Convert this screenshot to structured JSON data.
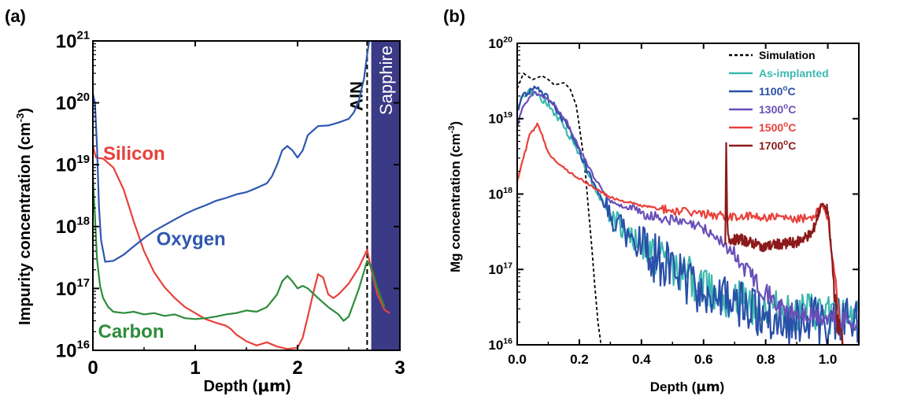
{
  "chart_data": [
    {
      "panel_label": "(a)",
      "type": "line",
      "xlabel": "Depth (μm)",
      "xlabel_prefix": "Depth (",
      "xlabel_unit": "μm",
      "xlabel_suffix": ")",
      "ylabel_prefix": "Impurity concentration (cm",
      "ylabel_exp": "-3",
      "ylabel_suffix": ")",
      "xlim": [
        0,
        3
      ],
      "ylim": [
        1e+16,
        1e+21
      ],
      "yscale": "log",
      "x_ticks": [
        "0",
        "1",
        "2",
        "3"
      ],
      "y_ticks": [
        {
          "base": "10",
          "exp": "16"
        },
        {
          "base": "10",
          "exp": "17"
        },
        {
          "base": "10",
          "exp": "18"
        },
        {
          "base": "10",
          "exp": "19"
        },
        {
          "base": "10",
          "exp": "20"
        },
        {
          "base": "10",
          "exp": "21"
        }
      ],
      "regions": [
        {
          "label": "AlN",
          "x_start": 2.68,
          "boundary": "dashed",
          "color": "#000000"
        },
        {
          "label": "Sapphire",
          "x_start": 2.72,
          "x_end": 3.0,
          "color": "#3b3a86",
          "text_color": "#ffffff"
        }
      ],
      "series": [
        {
          "name": "Silicon",
          "color": "#e8413a",
          "label_pos": [
            0.1,
            1.2e+19
          ],
          "points": [
            [
              0.0,
              2e+19
            ],
            [
              0.03,
              1.3e+19
            ],
            [
              0.1,
              1.25e+19
            ],
            [
              0.2,
              9e+18
            ],
            [
              0.3,
              4e+18
            ],
            [
              0.4,
              1.2e+18
            ],
            [
              0.5,
              4e+17
            ],
            [
              0.6,
              1.8e+17
            ],
            [
              0.7,
              1.05e+17
            ],
            [
              0.8,
              7e+16
            ],
            [
              0.9,
              5e+16
            ],
            [
              1.0,
              4e+16
            ],
            [
              1.1,
              3.2e+16
            ],
            [
              1.2,
              2.8e+16
            ],
            [
              1.3,
              2.5e+16
            ],
            [
              1.35,
              2.2e+16
            ],
            [
              1.4,
              1.8e+16
            ],
            [
              1.5,
              1.4e+16
            ],
            [
              1.6,
              1.2e+16
            ],
            [
              1.7,
              1.35e+16
            ],
            [
              1.8,
              1.15e+16
            ],
            [
              1.9,
              1.05e+16
            ],
            [
              2.0,
              1.1e+16
            ],
            [
              2.05,
              1.6e+16
            ],
            [
              2.1,
              3.5e+16
            ],
            [
              2.15,
              8e+16
            ],
            [
              2.2,
              1.7e+17
            ],
            [
              2.25,
              1.5e+17
            ],
            [
              2.3,
              8e+16
            ],
            [
              2.35,
              7e+16
            ],
            [
              2.4,
              8e+16
            ],
            [
              2.5,
              1.2e+17
            ],
            [
              2.6,
              2.2e+17
            ],
            [
              2.68,
              4.2e+17
            ],
            [
              2.72,
              2e+17
            ],
            [
              2.78,
              8e+16
            ],
            [
              2.85,
              4.5e+16
            ],
            [
              2.9,
              4e+16
            ]
          ]
        },
        {
          "name": "Oxygen",
          "color": "#2e57b0",
          "label_pos": [
            0.62,
            5e+17
          ],
          "points": [
            [
              0.0,
              1.4e+20
            ],
            [
              0.02,
              1e+20
            ],
            [
              0.04,
              2e+19
            ],
            [
              0.06,
              2e+18
            ],
            [
              0.08,
              6e+17
            ],
            [
              0.12,
              2.7e+17
            ],
            [
              0.2,
              2.8e+17
            ],
            [
              0.3,
              3.5e+17
            ],
            [
              0.4,
              4.8e+17
            ],
            [
              0.5,
              6.5e+17
            ],
            [
              0.6,
              8.5e+17
            ],
            [
              0.7,
              1.05e+18
            ],
            [
              0.8,
              1.3e+18
            ],
            [
              0.9,
              1.6e+18
            ],
            [
              1.0,
              1.9e+18
            ],
            [
              1.1,
              2.2e+18
            ],
            [
              1.2,
              2.6e+18
            ],
            [
              1.3,
              2.9e+18
            ],
            [
              1.4,
              3.3e+18
            ],
            [
              1.5,
              3.6e+18
            ],
            [
              1.6,
              4.2e+18
            ],
            [
              1.7,
              5e+18
            ],
            [
              1.75,
              6.5e+18
            ],
            [
              1.8,
              1e+19
            ],
            [
              1.85,
              1.7e+19
            ],
            [
              1.9,
              2e+19
            ],
            [
              1.95,
              1.7e+19
            ],
            [
              2.0,
              1.3e+19
            ],
            [
              2.05,
              1.7e+19
            ],
            [
              2.1,
              3e+19
            ],
            [
              2.2,
              4.2e+19
            ],
            [
              2.3,
              4.3e+19
            ],
            [
              2.4,
              4.8e+19
            ],
            [
              2.5,
              5.5e+19
            ],
            [
              2.55,
              7e+19
            ],
            [
              2.6,
              1.1e+20
            ],
            [
              2.65,
              2.5e+20
            ],
            [
              2.68,
              6e+20
            ],
            [
              2.7,
              1e+21
            ]
          ]
        },
        {
          "name": "Carbon",
          "color": "#2d8c3c",
          "label_pos": [
            0.05,
            1.6e+16
          ],
          "points": [
            [
              0.0,
              6e+18
            ],
            [
              0.02,
              1.5e+18
            ],
            [
              0.04,
              3e+17
            ],
            [
              0.07,
              1.1e+17
            ],
            [
              0.1,
              7e+16
            ],
            [
              0.15,
              5e+16
            ],
            [
              0.2,
              4.2e+16
            ],
            [
              0.3,
              4e+16
            ],
            [
              0.4,
              4.2e+16
            ],
            [
              0.5,
              3.8e+16
            ],
            [
              0.6,
              4e+16
            ],
            [
              0.7,
              3.6e+16
            ],
            [
              0.8,
              3.8e+16
            ],
            [
              0.9,
              3.3e+16
            ],
            [
              1.0,
              3.2e+16
            ],
            [
              1.1,
              3.3e+16
            ],
            [
              1.2,
              3.5e+16
            ],
            [
              1.3,
              3.8e+16
            ],
            [
              1.4,
              4e+16
            ],
            [
              1.5,
              4.4e+16
            ],
            [
              1.6,
              4.2e+16
            ],
            [
              1.7,
              5e+16
            ],
            [
              1.8,
              8e+16
            ],
            [
              1.85,
              1.3e+17
            ],
            [
              1.9,
              1.6e+17
            ],
            [
              1.95,
              1.3e+17
            ],
            [
              2.0,
              1e+17
            ],
            [
              2.05,
              1.1e+17
            ],
            [
              2.1,
              1e+17
            ],
            [
              2.2,
              7e+16
            ],
            [
              2.3,
              5e+16
            ],
            [
              2.4,
              3.8e+16
            ],
            [
              2.45,
              3e+16
            ],
            [
              2.5,
              3.5e+16
            ],
            [
              2.6,
              1e+17
            ],
            [
              2.68,
              2.8e+17
            ],
            [
              2.72,
              2.2e+17
            ],
            [
              2.78,
              1e+17
            ],
            [
              2.85,
              5e+16
            ]
          ]
        }
      ]
    },
    {
      "panel_label": "(b)",
      "type": "line",
      "xlabel": "Depth (μm)",
      "xlabel_prefix": "Depth (",
      "xlabel_unit": "μm",
      "xlabel_suffix": ")",
      "ylabel_prefix": "Mg concentration (cm",
      "ylabel_exp": "-3",
      "ylabel_suffix": ")",
      "xlim": [
        0,
        1.1
      ],
      "ylim": [
        1e+16,
        1e+20
      ],
      "yscale": "log",
      "x_ticks": [
        "0.0",
        "0.2",
        "0.4",
        "0.6",
        "0.8",
        "1.0"
      ],
      "y_ticks": [
        {
          "base": "10",
          "exp": "16"
        },
        {
          "base": "10",
          "exp": "17"
        },
        {
          "base": "10",
          "exp": "18"
        },
        {
          "base": "10",
          "exp": "19"
        },
        {
          "base": "10",
          "exp": "20"
        }
      ],
      "legend_position": "top-right",
      "series": [
        {
          "name": "Simulation",
          "legend_label": "Simulation",
          "color": "#000000",
          "dashed": true,
          "points": [
            [
              0.0,
              2.5e+19
            ],
            [
              0.02,
              4e+19
            ],
            [
              0.05,
              3.3e+19
            ],
            [
              0.08,
              3.7e+19
            ],
            [
              0.1,
              3.3e+19
            ],
            [
              0.12,
              2.8e+19
            ],
            [
              0.15,
              3e+19
            ],
            [
              0.17,
              2.5e+19
            ],
            [
              0.19,
              1.5e+19
            ],
            [
              0.2,
              8e+18
            ],
            [
              0.21,
              4e+18
            ],
            [
              0.22,
              1.8e+18
            ],
            [
              0.23,
              6e+17
            ],
            [
              0.24,
              2e+17
            ],
            [
              0.25,
              6e+16
            ],
            [
              0.26,
              2e+16
            ],
            [
              0.27,
              1e+16
            ]
          ]
        },
        {
          "name": "As-implanted",
          "legend_label": "As-implanted",
          "color": "#3cb8b0",
          "noise": 0.25,
          "points": [
            [
              0.0,
              1.5e+19
            ],
            [
              0.02,
              2e+19
            ],
            [
              0.04,
              2.3e+19
            ],
            [
              0.07,
              2e+19
            ],
            [
              0.1,
              1.5e+19
            ],
            [
              0.15,
              8e+18
            ],
            [
              0.2,
              3.5e+18
            ],
            [
              0.25,
              1.2e+18
            ],
            [
              0.3,
              5e+17
            ],
            [
              0.4,
              2e+17
            ],
            [
              0.5,
              1.1e+17
            ],
            [
              0.6,
              6e+16
            ],
            [
              0.7,
              4e+16
            ],
            [
              0.8,
              3e+16
            ],
            [
              0.9,
              2.5e+16
            ],
            [
              1.0,
              2.5e+16
            ],
            [
              1.1,
              2.5e+16
            ]
          ]
        },
        {
          "name": "1100°C",
          "legend_base": "1100",
          "legend_exp": "o",
          "legend_unit": "C",
          "color": "#2a4fa8",
          "noise": 0.3,
          "points": [
            [
              0.0,
              1.3e+19
            ],
            [
              0.02,
              2e+19
            ],
            [
              0.05,
              2.5e+19
            ],
            [
              0.08,
              2.2e+19
            ],
            [
              0.12,
              1.5e+19
            ],
            [
              0.16,
              8e+18
            ],
            [
              0.2,
              3.5e+18
            ],
            [
              0.25,
              1.2e+18
            ],
            [
              0.3,
              5e+17
            ],
            [
              0.4,
              1.8e+17
            ],
            [
              0.5,
              1e+17
            ],
            [
              0.6,
              5e+16
            ],
            [
              0.7,
              3.5e+16
            ],
            [
              0.8,
              2.5e+16
            ],
            [
              0.9,
              2e+16
            ],
            [
              1.0,
              2e+16
            ],
            [
              1.1,
              2e+16
            ]
          ]
        },
        {
          "name": "1300°C",
          "legend_base": "1300",
          "legend_exp": "o",
          "legend_unit": "C",
          "color": "#6a4fb8",
          "noise": 0.12,
          "points": [
            [
              0.0,
              8e+18
            ],
            [
              0.02,
              1.5e+19
            ],
            [
              0.05,
              2.2e+19
            ],
            [
              0.08,
              2.1e+19
            ],
            [
              0.12,
              1.5e+19
            ],
            [
              0.16,
              9e+18
            ],
            [
              0.2,
              4e+18
            ],
            [
              0.25,
              1.6e+18
            ],
            [
              0.3,
              8e+17
            ],
            [
              0.4,
              5.5e+17
            ],
            [
              0.5,
              4.5e+17
            ],
            [
              0.6,
              3.5e+17
            ],
            [
              0.65,
              2.5e+17
            ],
            [
              0.7,
              1.5e+17
            ],
            [
              0.75,
              9e+16
            ],
            [
              0.8,
              5e+16
            ],
            [
              0.85,
              3e+16
            ],
            [
              0.9,
              2.5e+16
            ],
            [
              1.0,
              2.2e+16
            ],
            [
              1.1,
              2e+16
            ]
          ]
        },
        {
          "name": "1500°C",
          "legend_base": "1500",
          "legend_exp": "o",
          "legend_unit": "C",
          "color": "#e8413a",
          "noise": 0.1,
          "points": [
            [
              0.0,
              1.5e+18
            ],
            [
              0.02,
              3e+18
            ],
            [
              0.04,
              6e+18
            ],
            [
              0.065,
              8.5e+18
            ],
            [
              0.08,
              6e+18
            ],
            [
              0.1,
              3.5e+18
            ],
            [
              0.15,
              2.2e+18
            ],
            [
              0.2,
              1.6e+18
            ],
            [
              0.25,
              1.2e+18
            ],
            [
              0.3,
              9e+17
            ],
            [
              0.4,
              7e+17
            ],
            [
              0.5,
              6e+17
            ],
            [
              0.6,
              5.5e+17
            ],
            [
              0.7,
              5e+17
            ],
            [
              0.8,
              5e+17
            ],
            [
              0.9,
              4.5e+17
            ],
            [
              0.95,
              5e+17
            ],
            [
              0.98,
              7.5e+17
            ],
            [
              1.0,
              5e+17
            ],
            [
              1.02,
              1e+17
            ],
            [
              1.04,
              1.5e+16
            ],
            [
              1.05,
              1e+16
            ]
          ]
        },
        {
          "name": "1700°C",
          "legend_base": "1700",
          "legend_exp": "o",
          "legend_unit": "C",
          "color": "#8b1a1a",
          "noise": 0.12,
          "points": [
            [
              0.67,
              2.5e+17
            ],
            [
              0.673,
              5e+18
            ],
            [
              0.676,
              4e+17
            ],
            [
              0.68,
              2.5e+17
            ],
            [
              0.72,
              2.5e+17
            ],
            [
              0.76,
              2.2e+17
            ],
            [
              0.8,
              2e+17
            ],
            [
              0.85,
              2.2e+17
            ],
            [
              0.9,
              2.3e+17
            ],
            [
              0.95,
              3e+17
            ],
            [
              0.98,
              7.5e+17
            ],
            [
              1.0,
              6e+17
            ],
            [
              1.01,
              2e+17
            ],
            [
              1.02,
              6e+16
            ],
            [
              1.03,
              2e+16
            ],
            [
              1.04,
              1.5e+16
            ],
            [
              1.05,
              1e+16
            ]
          ]
        }
      ]
    }
  ]
}
